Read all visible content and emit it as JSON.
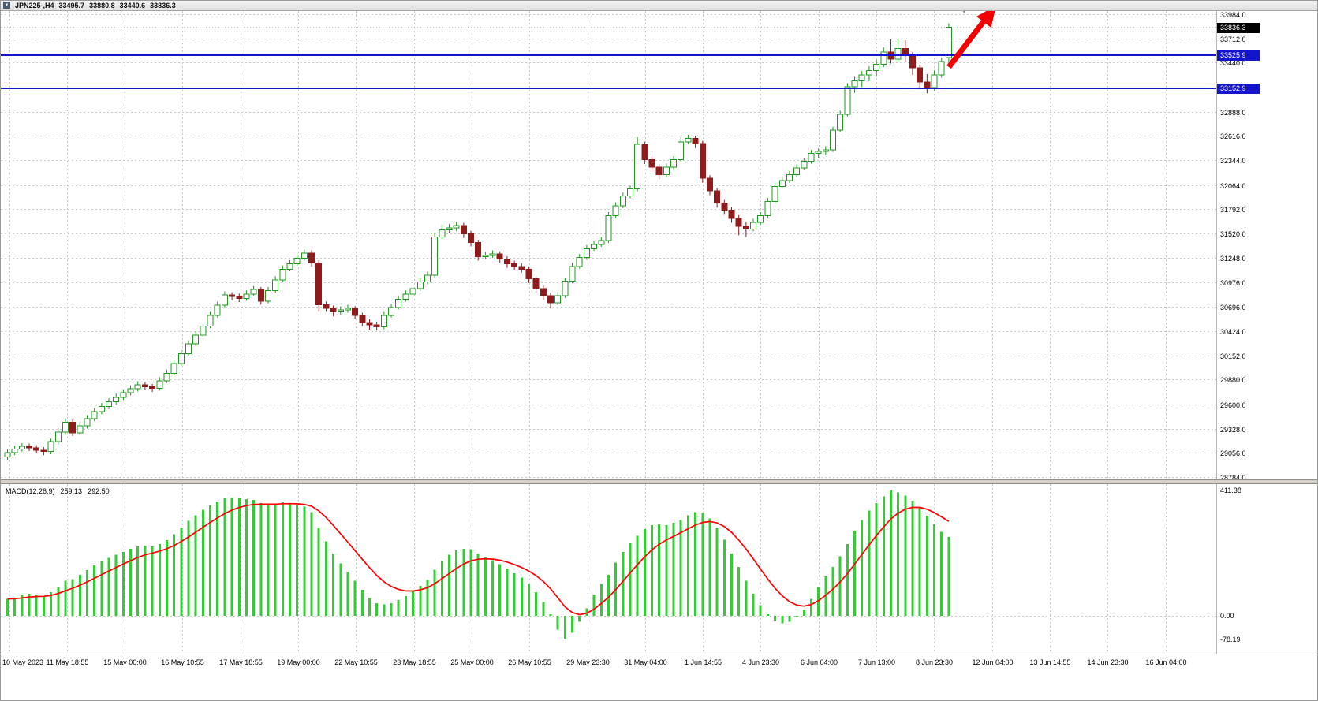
{
  "titlebar": {
    "symbol": "JPN225-,H4",
    "open": "33495.7",
    "high": "33880.8",
    "low": "33440.6",
    "close": "33836.3"
  },
  "chart_data": {
    "type": "candlestick",
    "symbol": "JPN225-",
    "timeframe": "H4",
    "title": "JPN225- H4 candlestick chart with MACD",
    "grid": true,
    "price_axis_labels": [
      "33984.0",
      "33712.0",
      "33440.0",
      "33160.0",
      "32888.0",
      "32616.0",
      "32344.0",
      "32064.0",
      "31792.0",
      "31520.0",
      "31248.0",
      "30976.0",
      "30696.0",
      "30424.0",
      "30152.0",
      "29880.0",
      "29600.0",
      "29328.0",
      "29056.0",
      "28784.0"
    ],
    "time_axis_labels": [
      "10 May 2023",
      "11 May 18:55",
      "15 May 00:00",
      "16 May 10:55",
      "17 May 18:55",
      "19 May 00:00",
      "22 May 10:55",
      "23 May 18:55",
      "25 May 00:00",
      "26 May 10:55",
      "29 May 23:30",
      "31 May 04:00",
      "1 Jun 14:55",
      "4 Jun 23:30",
      "6 Jun 04:00",
      "7 Jun 13:00",
      "8 Jun 23:30",
      "12 Jun 04:00",
      "13 Jun 14:55",
      "14 Jun 23:30",
      "16 Jun 04:00"
    ],
    "current_price_tag": "33836.3",
    "current_price": 33836.3,
    "horizontal_lines": [
      {
        "price": 33525.9,
        "label": "33525.9",
        "color": "#1414cd"
      },
      {
        "price": 33152.9,
        "label": "33152.9",
        "color": "#1414cd"
      }
    ],
    "annotations": [
      {
        "type": "arrow",
        "direction": "up-right",
        "color": "#f20000"
      },
      {
        "type": "mouse-cursor"
      }
    ],
    "colors": {
      "bull_fill": "#ffffff",
      "bull_stroke": "#1d9a1d",
      "bear_fill": "#8e1c1c",
      "bear_stroke": "#8e1c1c",
      "grid": "#c8c8c8",
      "hline": "#1414cd",
      "current_tag_bg": "#000000"
    },
    "candles_ohlc": [
      [
        29010,
        29095,
        28975,
        29060
      ],
      [
        29060,
        29135,
        29030,
        29100
      ],
      [
        29100,
        29165,
        29070,
        29130
      ],
      [
        29130,
        29160,
        29075,
        29110
      ],
      [
        29110,
        29140,
        29050,
        29085
      ],
      [
        29085,
        29120,
        29030,
        29070
      ],
      [
        29070,
        29215,
        29040,
        29180
      ],
      [
        29180,
        29330,
        29150,
        29290
      ],
      [
        29290,
        29445,
        29260,
        29400
      ],
      [
        29400,
        29430,
        29245,
        29280
      ],
      [
        29280,
        29400,
        29255,
        29360
      ],
      [
        29360,
        29480,
        29330,
        29440
      ],
      [
        29440,
        29560,
        29410,
        29520
      ],
      [
        29520,
        29615,
        29490,
        29575
      ],
      [
        29575,
        29670,
        29545,
        29630
      ],
      [
        29630,
        29720,
        29600,
        29680
      ],
      [
        29680,
        29770,
        29650,
        29730
      ],
      [
        29730,
        29815,
        29700,
        29775
      ],
      [
        29775,
        29860,
        29745,
        29820
      ],
      [
        29820,
        29850,
        29760,
        29800
      ],
      [
        29800,
        29830,
        29740,
        29780
      ],
      [
        29780,
        29905,
        29755,
        29865
      ],
      [
        29865,
        29990,
        29840,
        29950
      ],
      [
        29950,
        30100,
        29925,
        30060
      ],
      [
        30060,
        30210,
        30035,
        30170
      ],
      [
        30170,
        30320,
        30145,
        30280
      ],
      [
        30280,
        30420,
        30255,
        30380
      ],
      [
        30380,
        30520,
        30355,
        30480
      ],
      [
        30480,
        30640,
        30455,
        30600
      ],
      [
        30600,
        30755,
        30575,
        30715
      ],
      [
        30715,
        30870,
        30690,
        30830
      ],
      [
        30830,
        30860,
        30770,
        30810
      ],
      [
        30810,
        30845,
        30750,
        30790
      ],
      [
        30790,
        30880,
        30765,
        30840
      ],
      [
        30840,
        30930,
        30815,
        30890
      ],
      [
        30890,
        30920,
        30720,
        30760
      ],
      [
        30760,
        30920,
        30735,
        30880
      ],
      [
        30880,
        31040,
        30855,
        31000
      ],
      [
        31000,
        31160,
        30975,
        31120
      ],
      [
        31120,
        31220,
        31095,
        31180
      ],
      [
        31180,
        31280,
        31155,
        31240
      ],
      [
        31240,
        31340,
        31215,
        31300
      ],
      [
        31300,
        31330,
        31150,
        31190
      ],
      [
        31190,
        31220,
        30640,
        30720
      ],
      [
        30720,
        30755,
        30640,
        30680
      ],
      [
        30680,
        30710,
        30590,
        30640
      ],
      [
        30640,
        30700,
        30610,
        30660
      ],
      [
        30660,
        30720,
        30630,
        30680
      ],
      [
        30680,
        30705,
        30560,
        30600
      ],
      [
        30600,
        30630,
        30480,
        30520
      ],
      [
        30520,
        30555,
        30440,
        30495
      ],
      [
        30495,
        30530,
        30430,
        30470
      ],
      [
        30470,
        30640,
        30445,
        30600
      ],
      [
        30600,
        30730,
        30575,
        30690
      ],
      [
        30690,
        30820,
        30665,
        30780
      ],
      [
        30780,
        30880,
        30755,
        30840
      ],
      [
        30840,
        30940,
        30815,
        30900
      ],
      [
        30900,
        31015,
        30875,
        30975
      ],
      [
        30975,
        31090,
        30950,
        31050
      ],
      [
        31050,
        31530,
        31025,
        31480
      ],
      [
        31480,
        31620,
        31455,
        31560
      ],
      [
        31560,
        31625,
        31520,
        31585
      ],
      [
        31585,
        31650,
        31545,
        31610
      ],
      [
        31610,
        31640,
        31470,
        31515
      ],
      [
        31515,
        31550,
        31375,
        31420
      ],
      [
        31420,
        31450,
        31215,
        31260
      ],
      [
        31260,
        31315,
        31230,
        31275
      ],
      [
        31275,
        31330,
        31245,
        31290
      ],
      [
        31290,
        31320,
        31190,
        31235
      ],
      [
        31235,
        31265,
        31135,
        31180
      ],
      [
        31180,
        31215,
        31110,
        31150
      ],
      [
        31150,
        31185,
        31080,
        31120
      ],
      [
        31120,
        31150,
        30965,
        31010
      ],
      [
        31010,
        31040,
        30855,
        30900
      ],
      [
        30900,
        30935,
        30775,
        30820
      ],
      [
        30820,
        30855,
        30680,
        30740
      ],
      [
        30740,
        30860,
        30715,
        30820
      ],
      [
        30820,
        31025,
        30795,
        30985
      ],
      [
        30985,
        31190,
        30960,
        31150
      ],
      [
        31150,
        31290,
        31125,
        31250
      ],
      [
        31250,
        31390,
        31225,
        31350
      ],
      [
        31350,
        31435,
        31325,
        31395
      ],
      [
        31395,
        31480,
        31370,
        31440
      ],
      [
        31440,
        31760,
        31415,
        31720
      ],
      [
        31720,
        31870,
        31695,
        31830
      ],
      [
        31830,
        31980,
        31805,
        31940
      ],
      [
        31940,
        32060,
        31915,
        32020
      ],
      [
        32020,
        32600,
        31995,
        32520
      ],
      [
        32520,
        32550,
        32300,
        32350
      ],
      [
        32350,
        32385,
        32215,
        32265
      ],
      [
        32265,
        32300,
        32130,
        32180
      ],
      [
        32180,
        32305,
        32155,
        32265
      ],
      [
        32265,
        32390,
        32240,
        32350
      ],
      [
        32350,
        32600,
        32325,
        32550
      ],
      [
        32550,
        32630,
        32525,
        32590
      ],
      [
        32590,
        32620,
        32480,
        32530
      ],
      [
        32530,
        32560,
        32090,
        32140
      ],
      [
        32140,
        32175,
        31950,
        32000
      ],
      [
        32000,
        32035,
        31810,
        31860
      ],
      [
        31860,
        31895,
        31730,
        31780
      ],
      [
        31780,
        31815,
        31640,
        31690
      ],
      [
        31690,
        31725,
        31500,
        31600
      ],
      [
        31600,
        31650,
        31480,
        31570
      ],
      [
        31570,
        31685,
        31545,
        31645
      ],
      [
        31645,
        31760,
        31620,
        31720
      ],
      [
        31720,
        31920,
        31695,
        31880
      ],
      [
        31880,
        32090,
        31855,
        32050
      ],
      [
        32050,
        32155,
        32025,
        32115
      ],
      [
        32115,
        32220,
        32090,
        32180
      ],
      [
        32180,
        32295,
        32155,
        32255
      ],
      [
        32255,
        32370,
        32230,
        32330
      ],
      [
        32330,
        32460,
        32305,
        32420
      ],
      [
        32420,
        32475,
        32370,
        32440
      ],
      [
        32440,
        32500,
        32400,
        32460
      ],
      [
        32460,
        32720,
        32435,
        32680
      ],
      [
        32680,
        32900,
        32655,
        32860
      ],
      [
        32860,
        33210,
        32835,
        33170
      ],
      [
        33170,
        33280,
        33100,
        33235
      ],
      [
        33235,
        33345,
        33165,
        33300
      ],
      [
        33300,
        33400,
        33230,
        33350
      ],
      [
        33350,
        33470,
        33280,
        33420
      ],
      [
        33420,
        33610,
        33390,
        33560
      ],
      [
        33560,
        33700,
        33430,
        33480
      ],
      [
        33480,
        33705,
        33450,
        33600
      ],
      [
        33600,
        33690,
        33440,
        33520
      ],
      [
        33520,
        33560,
        33300,
        33380
      ],
      [
        33380,
        33420,
        33140,
        33220
      ],
      [
        33220,
        33310,
        33095,
        33160
      ],
      [
        33160,
        33350,
        33130,
        33300
      ],
      [
        33300,
        33495,
        33270,
        33450
      ],
      [
        33495.7,
        33880.8,
        33440.6,
        33836.3
      ]
    ],
    "macd": {
      "type": "macd-histogram",
      "label": "MACD(12,26,9)",
      "main_value": "259.13",
      "signal_value": "292.50",
      "axis_labels": [
        "411.38",
        "0.00",
        "-78.19"
      ],
      "histogram_color": "#32cd32",
      "signal_color": "#ff0000",
      "histogram": [
        55,
        60,
        68,
        72,
        70,
        65,
        78,
        95,
        115,
        120,
        135,
        150,
        165,
        178,
        190,
        200,
        210,
        220,
        228,
        230,
        228,
        235,
        248,
        268,
        290,
        312,
        330,
        348,
        362,
        375,
        385,
        388,
        386,
        383,
        380,
        370,
        365,
        368,
        372,
        370,
        365,
        358,
        340,
        290,
        245,
        205,
        172,
        145,
        115,
        85,
        60,
        42,
        38,
        42,
        52,
        65,
        80,
        98,
        118,
        152,
        180,
        200,
        215,
        220,
        218,
        205,
        192,
        182,
        170,
        155,
        140,
        125,
        105,
        78,
        45,
        5,
        -45,
        -78,
        -55,
        -20,
        25,
        70,
        105,
        135,
        175,
        210,
        240,
        262,
        285,
        298,
        300,
        298,
        305,
        315,
        330,
        340,
        338,
        320,
        290,
        250,
        205,
        160,
        115,
        72,
        35,
        5,
        -15,
        -25,
        -20,
        -5,
        20,
        55,
        95,
        130,
        160,
        195,
        235,
        280,
        315,
        345,
        370,
        392,
        411.38,
        405,
        395,
        378,
        355,
        328,
        300,
        275,
        259.13
      ]
    }
  }
}
